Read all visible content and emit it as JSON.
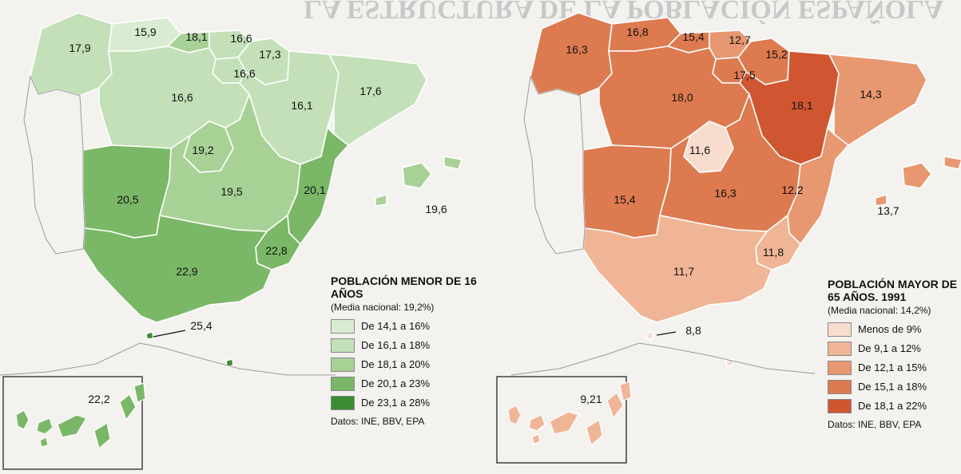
{
  "banner": "LA ESTRUCTURA DE LA POBLACIÓN ESPAÑOLA",
  "colors": {
    "menor": [
      "#d9ecd2",
      "#c3e0b8",
      "#a8d196",
      "#7ab867",
      "#3d8c34"
    ],
    "mayor": [
      "#f8dccd",
      "#f0b596",
      "#e79870",
      "#dd7a50",
      "#cf5631"
    ]
  },
  "map_left": {
    "title": "POBLACIÓN MENOR DE 16 AÑOS",
    "subtitle": "(Media nacional: 19,2%)",
    "legend": [
      "De 14,1 a 16%",
      "De 16,1 a 18%",
      "De 18,1 a 20%",
      "De 20,1 a 23%",
      "De 23,1 a 28%"
    ],
    "source": "Datos: INE, BBV, EPA",
    "regions": {
      "galicia": "17,9",
      "asturias": "15,9",
      "cantabria": "18,1",
      "paisvasco": "16,6",
      "navarra": "17,3",
      "rioja": "16,6",
      "castillaleon": "16,6",
      "aragon": "16,1",
      "cataluna": "17,6",
      "madrid": "19,2",
      "extremadura": "20,5",
      "castillamancha": "19,5",
      "valencia": "20,1",
      "murcia": "22,8",
      "andalucia": "22,9",
      "baleares": "19,6",
      "ceutamelilla": "25,4",
      "canarias": "22,2"
    }
  },
  "map_right": {
    "title": "POBLACIÓN MAYOR DE 65 AÑOS. 1991",
    "subtitle": "(Media nacional: 14,2%)",
    "legend": [
      "Menos de 9%",
      "De 9,1 a 12%",
      "De 12,1 a 15%",
      "De 15,1 a 18%",
      "De 18,1 a 22%"
    ],
    "source": "Datos: INE, BBV, EPA",
    "regions": {
      "galicia": "16,3",
      "asturias": "16,8",
      "cantabria": "15,4",
      "paisvasco": "12,7",
      "navarra": "15,2",
      "rioja": "17,5",
      "castillaleon": "18,0",
      "aragon": "18,1",
      "cataluna": "14,3",
      "madrid": "11,6",
      "extremadura": "15,4",
      "castillamancha": "16,3",
      "valencia": "12,2",
      "murcia": "11,8",
      "andalucia": "11,7",
      "baleares": "13,7",
      "ceutamelilla": "8,8",
      "canarias": "9,21"
    }
  }
}
